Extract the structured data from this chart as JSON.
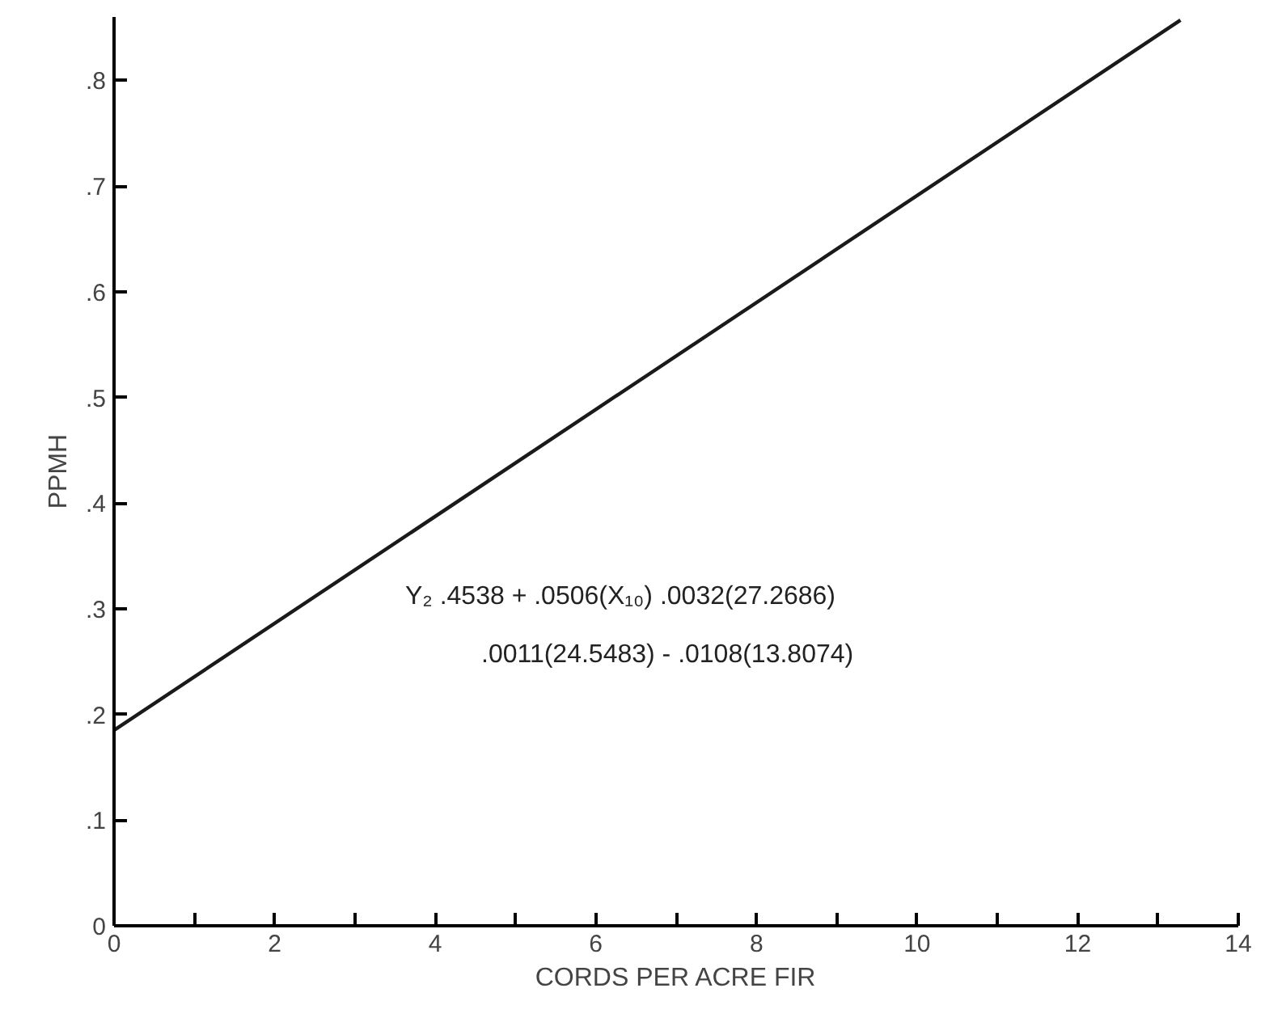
{
  "chart_data": {
    "type": "line",
    "xlabel": "CORDS PER ACRE FIR",
    "ylabel": "PPMH",
    "x": [
      0,
      13.28
    ],
    "series": [
      {
        "color": "#1a1a1a",
        "values": [
          0.185,
          0.857
        ]
      }
    ],
    "xlim": [
      0,
      14
    ],
    "ylim": [
      0,
      0.86
    ],
    "xticks": [
      0,
      {
        "value": 1,
        "label": null
      },
      2,
      {
        "value": 3,
        "label": null
      },
      4,
      {
        "value": 5,
        "label": null
      },
      6,
      {
        "value": 7,
        "label": null
      },
      8,
      {
        "value": 9,
        "label": null
      },
      10,
      {
        "value": 11,
        "label": null
      },
      12,
      {
        "value": 13,
        "label": null
      },
      14
    ],
    "yticks": [
      0,
      {
        "value": 0.1,
        "label": ".1"
      },
      {
        "value": 0.2,
        "label": ".2"
      },
      {
        "value": 0.3,
        "label": ".3"
      },
      {
        "value": 0.4,
        "label": ".4"
      },
      {
        "value": 0.5,
        "label": ".5"
      },
      {
        "value": 0.6,
        "label": ".6"
      },
      {
        "value": 0.7,
        "label": ".7"
      },
      {
        "value": 0.8,
        "label": ".8"
      }
    ],
    "annotations": [
      "Y₂   .4538 + .0506(X₁₀)   .0032(27.2686)",
      ".0011(24.5483) - .0108(13.8074)"
    ],
    "grid": false,
    "marker": "none",
    "line_style": "solid"
  }
}
